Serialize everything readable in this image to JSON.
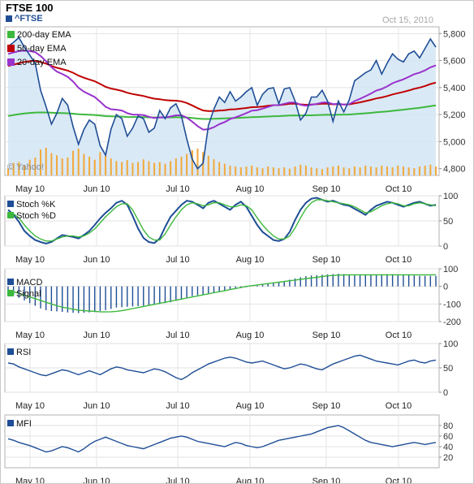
{
  "header": {
    "title": "FTSE 100",
    "ticker": "^FTSE",
    "date": "Oct 15, 2010",
    "watermark": "© Yahoo!"
  },
  "colors": {
    "price": "#1f4e96",
    "ema200": "#3cb83c",
    "ema50": "#c00000",
    "ema20": "#9933cc",
    "volume": "#f2a93b",
    "area": "#d4e5f4",
    "stochK": "#1f4e96",
    "stochD": "#3cb83c",
    "macd": "#1f4e96",
    "signal": "#3cb83c"
  },
  "x_labels": [
    "May 10",
    "Jun 10",
    "Jul 10",
    "Aug 10",
    "Sep 10",
    "Oct 10"
  ],
  "chart_data": [
    {
      "type": "line",
      "title": "FTSE 100",
      "ylim": [
        4750,
        5850
      ],
      "yticks": [
        "5,800",
        "5,600",
        "5,400",
        "5,200",
        "5,000",
        "4,800"
      ],
      "series": [
        {
          "name": "^FTSE",
          "values": [
            5705,
            5735,
            5770,
            5700,
            5640,
            5580,
            5380,
            5260,
            5130,
            5210,
            5320,
            5270,
            5110,
            4980,
            5090,
            5160,
            5130,
            4970,
            4900,
            5090,
            5200,
            5170,
            5040,
            5100,
            5190,
            5170,
            5070,
            5100,
            5230,
            5170,
            5250,
            5280,
            5190,
            5020,
            4870,
            4800,
            4840,
            5120,
            5240,
            5330,
            5290,
            5370,
            5300,
            5330,
            5370,
            5400,
            5270,
            5350,
            5390,
            5400,
            5280,
            5390,
            5400,
            5300,
            5160,
            5210,
            5330,
            5330,
            5380,
            5300,
            5150,
            5300,
            5220,
            5310,
            5450,
            5480,
            5510,
            5530,
            5600,
            5500,
            5580,
            5650,
            5610,
            5590,
            5650,
            5670,
            5620,
            5690,
            5760,
            5700
          ]
        },
        {
          "name": "200-day EMA",
          "values": [
            5190,
            5197,
            5203,
            5208,
            5212,
            5215,
            5216,
            5216,
            5214,
            5212,
            5211,
            5210,
            5207,
            5203,
            5201,
            5199,
            5197,
            5193,
            5189,
            5187,
            5186,
            5185,
            5183,
            5182,
            5182,
            5181,
            5180,
            5179,
            5180,
            5179,
            5180,
            5181,
            5180,
            5178,
            5175,
            5171,
            5168,
            5168,
            5169,
            5171,
            5172,
            5174,
            5175,
            5177,
            5179,
            5181,
            5182,
            5184,
            5186,
            5188,
            5189,
            5191,
            5193,
            5194,
            5193,
            5194,
            5195,
            5196,
            5198,
            5199,
            5198,
            5199,
            5200,
            5201,
            5204,
            5207,
            5210,
            5213,
            5217,
            5220,
            5223,
            5228,
            5232,
            5236,
            5241,
            5246,
            5250,
            5256,
            5262,
            5268
          ]
        },
        {
          "name": "50-day EMA",
          "values": [
            5560,
            5570,
            5580,
            5590,
            5596,
            5598,
            5590,
            5578,
            5560,
            5547,
            5537,
            5526,
            5510,
            5489,
            5473,
            5460,
            5447,
            5427,
            5406,
            5393,
            5385,
            5376,
            5362,
            5352,
            5345,
            5338,
            5327,
            5318,
            5314,
            5307,
            5305,
            5303,
            5298,
            5286,
            5268,
            5248,
            5231,
            5226,
            5226,
            5230,
            5232,
            5238,
            5240,
            5244,
            5249,
            5255,
            5256,
            5260,
            5265,
            5270,
            5270,
            5275,
            5280,
            5281,
            5276,
            5273,
            5275,
            5277,
            5281,
            5281,
            5276,
            5277,
            5275,
            5276,
            5283,
            5291,
            5300,
            5309,
            5320,
            5327,
            5337,
            5349,
            5359,
            5368,
            5379,
            5391,
            5400,
            5412,
            5426,
            5437
          ]
        },
        {
          "name": "20-day EMA",
          "values": [
            5650,
            5660,
            5670,
            5673,
            5670,
            5662,
            5634,
            5596,
            5551,
            5519,
            5501,
            5480,
            5444,
            5399,
            5370,
            5350,
            5330,
            5296,
            5258,
            5240,
            5236,
            5230,
            5211,
            5200,
            5199,
            5196,
            5184,
            5175,
            5180,
            5179,
            5186,
            5195,
            5195,
            5178,
            5148,
            5115,
            5089,
            5092,
            5107,
            5129,
            5145,
            5167,
            5180,
            5194,
            5211,
            5229,
            5233,
            5244,
            5257,
            5270,
            5270,
            5280,
            5290,
            5290,
            5273,
            5266,
            5273,
            5279,
            5290,
            5291,
            5278,
            5280,
            5274,
            5278,
            5300,
            5317,
            5336,
            5355,
            5378,
            5390,
            5409,
            5432,
            5447,
            5461,
            5480,
            5499,
            5511,
            5528,
            5550,
            5564
          ]
        }
      ],
      "volume": [
        0.15,
        0.28,
        0.3,
        0.22,
        0.35,
        0.4,
        0.58,
        0.62,
        0.5,
        0.45,
        0.38,
        0.4,
        0.55,
        0.6,
        0.48,
        0.42,
        0.35,
        0.52,
        0.45,
        0.38,
        0.32,
        0.3,
        0.34,
        0.28,
        0.3,
        0.36,
        0.32,
        0.28,
        0.3,
        0.26,
        0.32,
        0.38,
        0.42,
        0.48,
        0.56,
        0.6,
        0.52,
        0.44,
        0.36,
        0.3,
        0.26,
        0.22,
        0.2,
        0.18,
        0.2,
        0.22,
        0.18,
        0.16,
        0.2,
        0.18,
        0.16,
        0.18,
        0.15,
        0.2,
        0.24,
        0.22,
        0.18,
        0.16,
        0.14,
        0.18,
        0.2,
        0.22,
        0.18,
        0.16,
        0.2,
        0.18,
        0.22,
        0.2,
        0.18,
        0.22,
        0.2,
        0.18,
        0.22,
        0.2,
        0.18,
        0.16,
        0.2,
        0.22,
        0.24,
        0.2
      ],
      "legend": [
        "200-day EMA",
        "50-day EMA",
        "20-day EMA"
      ],
      "legend_position": "top-left"
    },
    {
      "type": "line",
      "ylim": [
        0,
        100
      ],
      "yticks": [
        "100",
        "50",
        "0"
      ],
      "series": [
        {
          "name": "Stoch %K",
          "values": [
            72,
            62,
            48,
            30,
            20,
            12,
            8,
            5,
            8,
            15,
            22,
            20,
            18,
            15,
            22,
            30,
            42,
            55,
            66,
            75,
            86,
            90,
            82,
            60,
            35,
            16,
            8,
            6,
            15,
            38,
            58,
            70,
            82,
            90,
            88,
            82,
            75,
            86,
            90,
            84,
            78,
            72,
            82,
            88,
            78,
            60,
            42,
            28,
            20,
            12,
            10,
            14,
            28,
            52,
            72,
            86,
            94,
            96,
            92,
            88,
            90,
            86,
            82,
            80,
            74,
            68,
            62,
            72,
            80,
            84,
            88,
            86,
            82,
            78,
            82,
            86,
            88,
            84,
            80,
            82
          ]
        },
        {
          "name": "Stoch %D",
          "values": [
            66,
            64,
            56,
            42,
            30,
            20,
            14,
            10,
            10,
            14,
            18,
            20,
            20,
            18,
            20,
            26,
            34,
            46,
            58,
            68,
            78,
            84,
            84,
            72,
            52,
            32,
            18,
            12,
            12,
            24,
            42,
            58,
            72,
            82,
            86,
            84,
            80,
            82,
            86,
            86,
            82,
            78,
            78,
            82,
            80,
            72,
            56,
            42,
            30,
            20,
            14,
            14,
            20,
            36,
            56,
            74,
            86,
            92,
            92,
            90,
            88,
            86,
            84,
            82,
            78,
            72,
            66,
            68,
            74,
            80,
            84,
            86,
            84,
            80,
            80,
            84,
            86,
            84,
            82,
            80
          ]
        }
      ],
      "legend": [
        "Stoch %K",
        "Stoch %D"
      ]
    },
    {
      "type": "bar",
      "ylim": [
        -200,
        100
      ],
      "yticks": [
        "100",
        "0",
        "-100",
        "-200"
      ],
      "series": [
        {
          "name": "MACD",
          "values": [
            -30,
            -50,
            -65,
            -80,
            -95,
            -110,
            -125,
            -135,
            -140,
            -142,
            -145,
            -148,
            -150,
            -152,
            -150,
            -148,
            -146,
            -140,
            -135,
            -128,
            -120,
            -118,
            -116,
            -114,
            -112,
            -110,
            -108,
            -105,
            -100,
            -95,
            -90,
            -82,
            -75,
            -65,
            -55,
            -50,
            -45,
            -40,
            -35,
            -30,
            -25,
            -20,
            -15,
            -10,
            -5,
            0,
            5,
            10,
            15,
            20,
            25,
            30,
            38,
            45,
            52,
            58,
            62,
            64,
            66,
            68,
            70,
            72,
            70,
            68,
            66,
            64,
            65,
            67,
            68,
            69,
            70,
            70,
            68,
            66,
            64,
            62,
            60,
            60,
            60,
            60
          ]
        },
        {
          "name": "Signal",
          "values": [
            -20,
            -30,
            -40,
            -50,
            -60,
            -70,
            -80,
            -90,
            -100,
            -110,
            -118,
            -124,
            -130,
            -135,
            -138,
            -140,
            -142,
            -144,
            -145,
            -144,
            -142,
            -138,
            -132,
            -126,
            -120,
            -114,
            -108,
            -102,
            -96,
            -90,
            -84,
            -78,
            -72,
            -66,
            -60,
            -54,
            -48,
            -42,
            -36,
            -30,
            -24,
            -18,
            -12,
            -6,
            0,
            4,
            8,
            12,
            16,
            20,
            24,
            28,
            32,
            36,
            40,
            44,
            48,
            52,
            56,
            60,
            62,
            64,
            65,
            66,
            66,
            66,
            66,
            66,
            66,
            66,
            66,
            66,
            66,
            66,
            66,
            66,
            66,
            66,
            66,
            66
          ]
        }
      ],
      "legend": [
        "MACD",
        "Signal"
      ]
    },
    {
      "type": "line",
      "ylim": [
        0,
        100
      ],
      "yticks": [
        "100",
        "50",
        "0"
      ],
      "series": [
        {
          "name": "RSI",
          "values": [
            60,
            58,
            52,
            48,
            44,
            40,
            36,
            34,
            38,
            42,
            46,
            44,
            40,
            36,
            40,
            44,
            40,
            36,
            42,
            48,
            52,
            50,
            46,
            44,
            42,
            40,
            44,
            48,
            46,
            42,
            36,
            30,
            26,
            32,
            40,
            46,
            52,
            58,
            62,
            66,
            70,
            72,
            70,
            66,
            62,
            60,
            62,
            64,
            60,
            56,
            52,
            48,
            50,
            54,
            58,
            56,
            52,
            48,
            46,
            52,
            58,
            62,
            66,
            70,
            74,
            76,
            72,
            68,
            64,
            62,
            60,
            58,
            56,
            60,
            64,
            66,
            62,
            60,
            64,
            66
          ]
        }
      ],
      "legend": [
        "RSI"
      ]
    },
    {
      "type": "line",
      "ylim": [
        0,
        100
      ],
      "yticks": [
        "80",
        "60",
        "40",
        "20"
      ],
      "series": [
        {
          "name": "MFI",
          "values": [
            55,
            52,
            48,
            45,
            42,
            38,
            34,
            30,
            32,
            36,
            40,
            38,
            34,
            30,
            36,
            44,
            50,
            54,
            58,
            54,
            50,
            46,
            42,
            40,
            38,
            36,
            40,
            44,
            48,
            52,
            56,
            58,
            60,
            58,
            54,
            50,
            48,
            46,
            44,
            42,
            40,
            44,
            48,
            46,
            42,
            40,
            38,
            40,
            44,
            48,
            52,
            54,
            56,
            58,
            60,
            62,
            64,
            68,
            72,
            76,
            78,
            80,
            76,
            70,
            64,
            58,
            52,
            48,
            46,
            44,
            42,
            40,
            42,
            44,
            46,
            48,
            46,
            44,
            46,
            48
          ]
        }
      ],
      "legend": [
        "MFI"
      ]
    }
  ]
}
